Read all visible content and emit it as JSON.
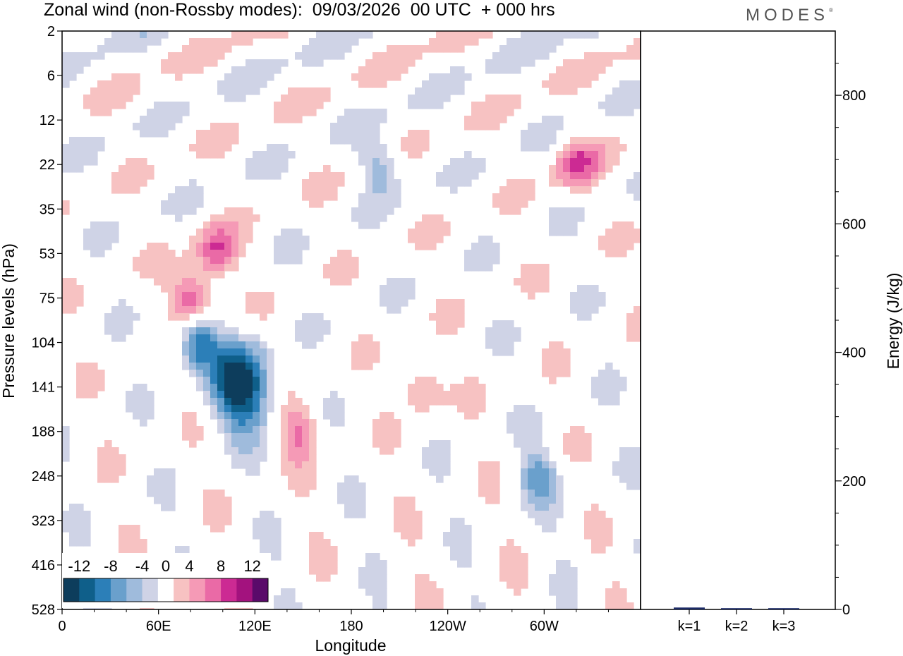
{
  "title": "Zonal wind (non-Rossby modes):  09/03/2026  00 UTC  + 000 hrs",
  "logo_text": "MODES",
  "logo_mark": "®",
  "chart_data": [
    {
      "type": "heatmap",
      "title": "Zonal wind (non-Rossby modes):  09/03/2026  00 UTC  + 000 hrs",
      "xlabel": "Longitude",
      "ylabel": "Pressure levels (hPa)",
      "x_ticks": [
        "0",
        "60E",
        "120E",
        "180",
        "120W",
        "60W"
      ],
      "x_range": [
        0,
        360
      ],
      "y_ticks": [
        "2",
        "6",
        "12",
        "22",
        "35",
        "53",
        "75",
        "104",
        "141",
        "188",
        "248",
        "323",
        "416",
        "528"
      ],
      "colorbar": {
        "labels": [
          "-12",
          "-8",
          "-4",
          "0",
          "4",
          "8",
          "12"
        ],
        "levels": [
          -14,
          -12,
          -10,
          -8,
          -6,
          -4,
          -2,
          2,
          4,
          6,
          8,
          10,
          12,
          14
        ],
        "colors": [
          "#0d3d5c",
          "#0f5f8a",
          "#2c7fb8",
          "#6aa0cc",
          "#9fbbdc",
          "#cfd3e6",
          "#ffffff",
          "#f7c2c2",
          "#f59ab6",
          "#ea6aa6",
          "#cc2a93",
          "#a3127e",
          "#5a0a6a"
        ]
      },
      "features": [
        {
          "name": "strong easterly jet core",
          "lon": 112,
          "level": "141",
          "value": -14
        },
        {
          "name": "easterly lobe",
          "lon": 84,
          "level": "104",
          "value": -10
        },
        {
          "name": "westerly band",
          "lon": 80,
          "level": "75",
          "value": 9
        },
        {
          "name": "westerly band",
          "lon": 96,
          "level": "53",
          "value": 8
        },
        {
          "name": "westerly patch",
          "lon": 147,
          "level": "188",
          "value": 6
        },
        {
          "name": "westerly patch",
          "lon": 224,
          "level": "141",
          "value": 6
        },
        {
          "name": "westerly patch",
          "lon": 320,
          "level": "22",
          "value": 7
        },
        {
          "name": "easterly patch",
          "lon": 198,
          "level": "22",
          "value": -6
        },
        {
          "name": "easterly patch",
          "lon": 296,
          "level": "248",
          "value": -6
        }
      ]
    },
    {
      "type": "bar",
      "categories": [
        "k=1",
        "k=2",
        "k=3"
      ],
      "values": [
        3,
        2,
        2
      ],
      "ylabel": "Energy (J/kg)",
      "ylim": [
        0,
        900
      ],
      "y_ticks": [
        "0",
        "200",
        "400",
        "600",
        "800"
      ]
    }
  ]
}
